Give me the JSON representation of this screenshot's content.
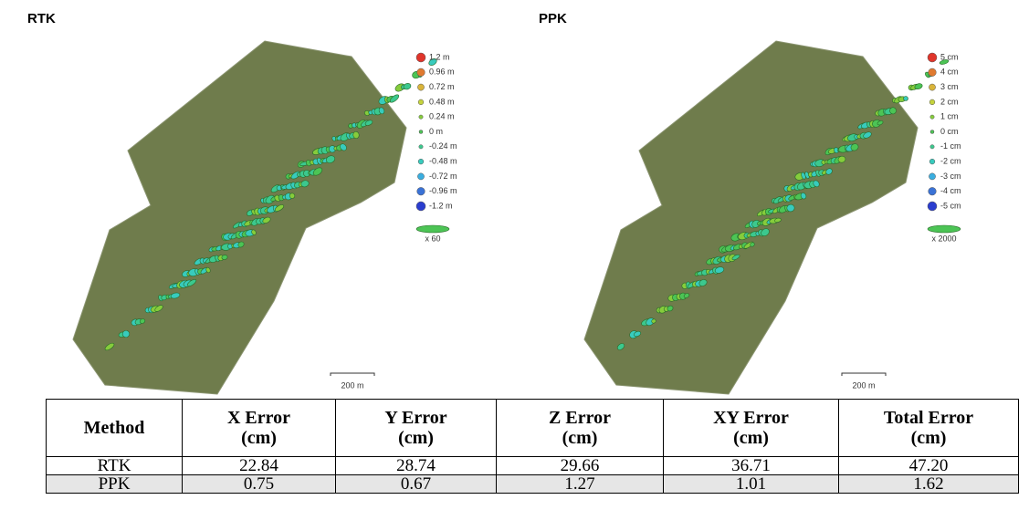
{
  "panels": [
    {
      "title": "RTK",
      "legend": [
        {
          "label": "1.2 m",
          "color": "#e0352b"
        },
        {
          "label": "0.96 m",
          "color": "#e07a30"
        },
        {
          "label": "0.72 m",
          "color": "#d9b43a"
        },
        {
          "label": "0.48 m",
          "color": "#c5d33c"
        },
        {
          "label": "0.24 m",
          "color": "#86cc3c"
        },
        {
          "label": "0 m",
          "color": "#4cc455"
        },
        {
          "label": "-0.24 m",
          "color": "#3cc88e"
        },
        {
          "label": "-0.48 m",
          "color": "#38cbbd"
        },
        {
          "label": "-0.72 m",
          "color": "#3aaee0"
        },
        {
          "label": "-0.96 m",
          "color": "#3a72d6"
        },
        {
          "label": "-1.2 m",
          "color": "#2a3dcf"
        }
      ],
      "scale_factor": "x 60",
      "scale_bar": "200 m"
    },
    {
      "title": "PPK",
      "legend": [
        {
          "label": "5 cm",
          "color": "#e0352b"
        },
        {
          "label": "4 cm",
          "color": "#e07a30"
        },
        {
          "label": "3 cm",
          "color": "#d9b43a"
        },
        {
          "label": "2 cm",
          "color": "#c5d33c"
        },
        {
          "label": "1 cm",
          "color": "#86cc3c"
        },
        {
          "label": "0 cm",
          "color": "#4cc455"
        },
        {
          "label": "-1 cm",
          "color": "#3cc88e"
        },
        {
          "label": "-2 cm",
          "color": "#38cbbd"
        },
        {
          "label": "-3 cm",
          "color": "#3aaee0"
        },
        {
          "label": "-4 cm",
          "color": "#3a72d6"
        },
        {
          "label": "-5 cm",
          "color": "#2a3dcf"
        }
      ],
      "scale_factor": "x 2000",
      "scale_bar": "200 m"
    }
  ],
  "table": {
    "header": [
      [
        "Method"
      ],
      [
        "X Error",
        "(cm)"
      ],
      [
        "Y Error",
        "(cm)"
      ],
      [
        "Z Error",
        "(cm)"
      ],
      [
        "XY Error",
        "(cm)"
      ],
      [
        "Total Error",
        "(cm)"
      ]
    ],
    "rows": [
      [
        "RTK",
        "22.84",
        "28.74",
        "29.66",
        "36.71",
        "47.20"
      ],
      [
        "PPK",
        "0.75",
        "0.67",
        "1.27",
        "1.01",
        "1.62"
      ]
    ]
  }
}
